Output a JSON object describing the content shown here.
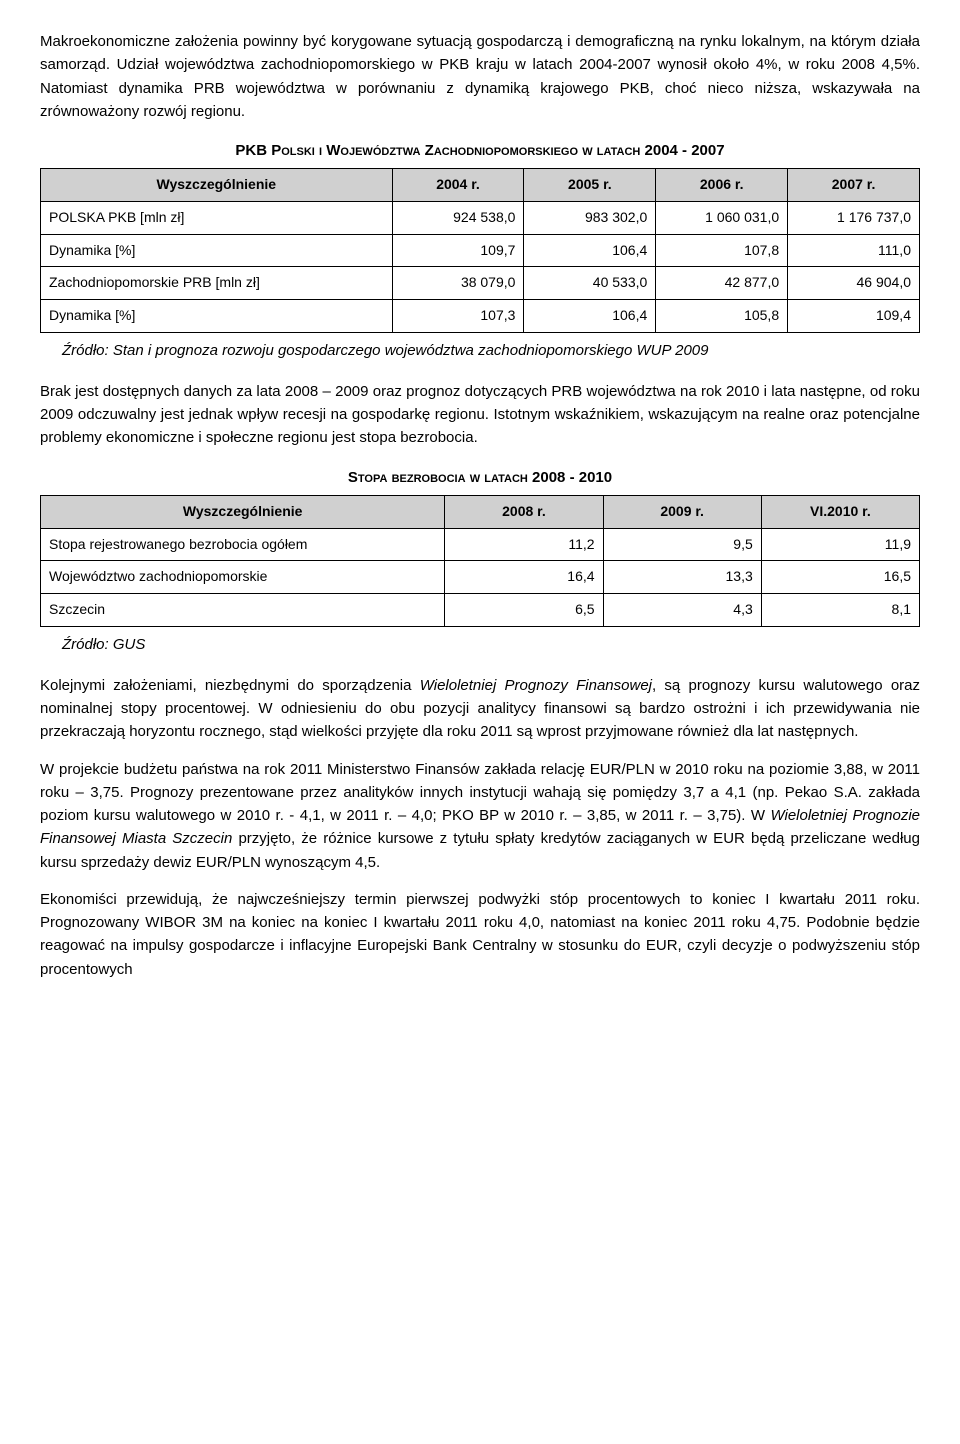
{
  "p1": "Makroekonomiczne założenia powinny być korygowane sytuacją gospodarczą i demograficzną na rynku lokalnym, na którym działa samorząd. Udział województwa zachodniopomorskiego w PKB kraju w latach 2004-2007 wynosił około 4%, w roku 2008 4,5%. Natomiast dynamika PRB województwa w porównaniu z dynamiką krajowego PKB, choć nieco niższa, wskazywała na zrównoważony rozwój regionu.",
  "t1": {
    "title_a": "PKB P",
    "title_b": "olski i ",
    "title_c": "W",
    "title_d": "ojewództwa ",
    "title_e": "Z",
    "title_f": "achodniopomorskiego w latach ",
    "title_g": "2004 - 2007",
    "headers": [
      "Wyszczególnienie",
      "2004 r.",
      "2005 r.",
      "2006 r.",
      "2007 r."
    ],
    "rows": [
      [
        "POLSKA PKB [mln zł]",
        "924 538,0",
        "983 302,0",
        "1 060 031,0",
        "1 176 737,0"
      ],
      [
        "Dynamika [%]",
        "109,7",
        "106,4",
        "107,8",
        "111,0"
      ],
      [
        "Zachodniopomorskie PRB [mln zł]",
        "38 079,0",
        "40 533,0",
        "42 877,0",
        "46 904,0"
      ],
      [
        "Dynamika [%]",
        "107,3",
        "106,4",
        "105,8",
        "109,4"
      ]
    ],
    "col_widths": [
      "40%",
      "15%",
      "15%",
      "15%",
      "15%"
    ],
    "source": "Źródło: Stan i prognoza rozwoju gospodarczego województwa zachodniopomorskiego WUP 2009"
  },
  "p2": "Brak jest dostępnych danych za lata 2008 – 2009 oraz prognoz dotyczących PRB województwa na rok 2010 i lata następne, od roku 2009 odczuwalny jest jednak wpływ recesji na gospodarkę regionu. Istotnym wskaźnikiem, wskazującym na realne oraz potencjalne problemy ekonomiczne i społeczne regionu jest stopa bezrobocia.",
  "t2": {
    "title_a": "S",
    "title_b": "topa bezrobocia w latach ",
    "title_c": "2008 - 2010",
    "headers": [
      "Wyszczególnienie",
      "2008 r.",
      "2009 r.",
      "VI.2010 r."
    ],
    "rows": [
      [
        "Stopa rejestrowanego bezrobocia ogółem",
        "11,2",
        "9,5",
        "11,9"
      ],
      [
        "Województwo zachodniopomorskie",
        "16,4",
        "13,3",
        "16,5"
      ],
      [
        "Szczecin",
        "6,5",
        "4,3",
        "8,1"
      ]
    ],
    "col_widths": [
      "46%",
      "18%",
      "18%",
      "18%"
    ],
    "source": "Źródło: GUS"
  },
  "p3a": "Kolejnymi założeniami, niezbędnymi do sporządzenia ",
  "p3b": "Wieloletniej Prognozy Finansowej",
  "p3c": ", są prognozy kursu walutowego oraz nominalnej stopy procentowej. W odniesieniu do obu pozycji analitycy finansowi są bardzo ostrożni i ich przewidywania nie przekraczają horyzontu rocznego, stąd wielkości przyjęte dla roku 2011 są wprost przyjmowane również dla lat następnych.",
  "p4a": "W projekcie budżetu państwa na rok 2011 Ministerstwo Finansów zakłada relację EUR/PLN w 2010 roku na poziomie 3,88, w 2011 roku – 3,75. Prognozy prezentowane przez analityków innych instytucji wahają się pomiędzy 3,7 a 4,1 (np. Pekao S.A. zakłada poziom kursu walutowego w 2010 r. - 4,1, w 2011 r. – 4,0; PKO BP w 2010 r. – 3,85, w 2011 r. – 3,75). W ",
  "p4b": "Wieloletniej Prognozie Finansowej Miasta Szczecin",
  "p4c": " przyjęto, że różnice kursowe z tytułu spłaty kredytów zaciąganych w EUR będą przeliczane według kursu sprzedaży dewiz EUR/PLN wynoszącym 4,5.",
  "p5": "Ekonomiści przewidują, że najwcześniejszy termin pierwszej podwyżki stóp procentowych to koniec I kwartału 2011 roku. Prognozowany WIBOR 3M na koniec na koniec I kwartału 2011 roku 4,0, natomiast na koniec 2011 roku 4,75. Podobnie będzie reagować na impulsy gospodarcze i inflacyjne Europejski Bank Centralny w stosunku do EUR, czyli decyzje o podwyższeniu stóp procentowych"
}
